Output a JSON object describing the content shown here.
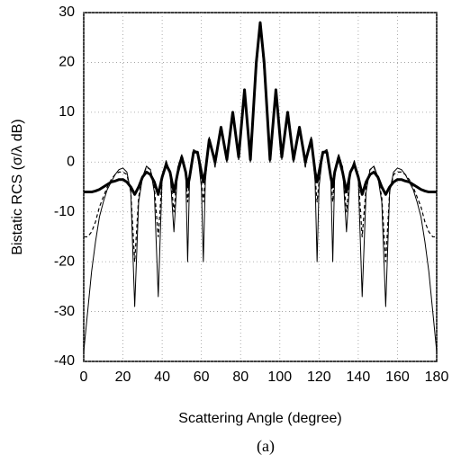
{
  "chart_data": {
    "type": "line",
    "x_label": "Scattering Angle (degree)",
    "y_label": "Bistatic RCS (σ/λ dB)",
    "caption": "(a)",
    "x": [
      0,
      2,
      4,
      6,
      8,
      10,
      12,
      14,
      16,
      18,
      20,
      22,
      24,
      26,
      28,
      30,
      32,
      34,
      36,
      38,
      40,
      42,
      44,
      46,
      48,
      50,
      52,
      53,
      54,
      56,
      58,
      60,
      61,
      62,
      64,
      67,
      70,
      73,
      76,
      79,
      82,
      85,
      88,
      90,
      92,
      95,
      98,
      101,
      104,
      107,
      110,
      113,
      116,
      118,
      119,
      120,
      122,
      124,
      126,
      127,
      128,
      130,
      132,
      134,
      136,
      138,
      140,
      142,
      144,
      146,
      148,
      150,
      152,
      154,
      156,
      158,
      160,
      162,
      164,
      166,
      168,
      170,
      172,
      174,
      176,
      178,
      180
    ],
    "series": [
      {
        "color": "#000000",
        "width": 1,
        "line_style": "solid",
        "values": [
          -38,
          -30,
          -22,
          -16,
          -11,
          -8,
          -5.5,
          -4,
          -2.5,
          -1.5,
          -1.2,
          -2,
          -6,
          -29,
          -8,
          -3,
          -0.8,
          -1.5,
          -6,
          -27,
          -3,
          0.3,
          -2,
          -14,
          -1,
          1.5,
          -2,
          -20,
          -3,
          2.5,
          2,
          -5,
          -20,
          -4,
          5,
          -1,
          7,
          0,
          10,
          0.5,
          14.5,
          0,
          18,
          28,
          18,
          0,
          14.5,
          0.5,
          10,
          0,
          7,
          -1,
          5,
          -4,
          -20,
          -5,
          2,
          2.5,
          -3,
          -20,
          -2,
          1.5,
          -1,
          -14,
          -2,
          0.3,
          -3,
          -27,
          -6,
          -1.5,
          -0.8,
          -3,
          -8,
          -29,
          -6,
          -2,
          -1.2,
          -1.5,
          -2.5,
          -4,
          -5.5,
          -8,
          -11,
          -16,
          -22,
          -30,
          -38
        ]
      },
      {
        "color": "#000000",
        "width": 1.2,
        "line_style": "dashed",
        "values": [
          -15,
          -15,
          -14,
          -12,
          -9,
          -7,
          -5,
          -3.5,
          -2.5,
          -2,
          -2,
          -2.5,
          -6,
          -20,
          -7,
          -3,
          -1,
          -1.5,
          -5,
          -15,
          -3,
          0,
          -2,
          -10,
          -1,
          1.5,
          -2,
          -8,
          -3,
          2.5,
          2,
          -4,
          -8,
          -3,
          5,
          -1,
          7,
          0,
          10,
          0.5,
          14.5,
          0,
          18,
          28,
          18,
          0,
          14.5,
          0.5,
          10,
          0,
          7,
          -1,
          5,
          -3,
          -8,
          -4,
          2,
          2.5,
          -3,
          -8,
          -2,
          1.5,
          -1,
          -10,
          -2,
          0,
          -3,
          -15,
          -5,
          -1.5,
          -1,
          -3,
          -7,
          -20,
          -6,
          -2.5,
          -2,
          -2,
          -2.5,
          -3.5,
          -5,
          -7,
          -9,
          -12,
          -14,
          -15,
          -15
        ]
      },
      {
        "color": "#000000",
        "width": 3,
        "line_style": "solid",
        "values": [
          -6,
          -6,
          -6,
          -5.8,
          -5.5,
          -5,
          -4.5,
          -4,
          -3.8,
          -3.5,
          -3.5,
          -4,
          -5,
          -6.5,
          -5,
          -3,
          -2,
          -2.5,
          -4,
          -6.5,
          -3,
          -0.5,
          -2,
          -6,
          -2,
          1,
          -2,
          -5,
          -3,
          2,
          2,
          -2,
          -4,
          -2,
          4.5,
          0,
          7,
          0.5,
          10,
          1,
          14.5,
          0.5,
          20,
          28,
          20,
          0.5,
          14.5,
          1,
          10,
          0.5,
          7,
          0,
          4.5,
          -2,
          -4,
          -2,
          2,
          2,
          -3,
          -5,
          -2,
          1,
          -2,
          -6,
          -2,
          -0.5,
          -3,
          -6.5,
          -4,
          -2.5,
          -2,
          -3,
          -5,
          -6.5,
          -5,
          -4,
          -3.5,
          -3.5,
          -3.8,
          -4,
          -4.5,
          -5,
          -5.5,
          -5.8,
          -6,
          -6,
          -6
        ]
      }
    ],
    "xlim": [
      0,
      180
    ],
    "xticks": [
      0,
      20,
      40,
      60,
      80,
      100,
      120,
      140,
      160,
      180
    ],
    "ylim": [
      -40,
      30
    ],
    "yticks": [
      -40,
      -30,
      -20,
      -10,
      0,
      10,
      20,
      30
    ],
    "grid": true
  }
}
